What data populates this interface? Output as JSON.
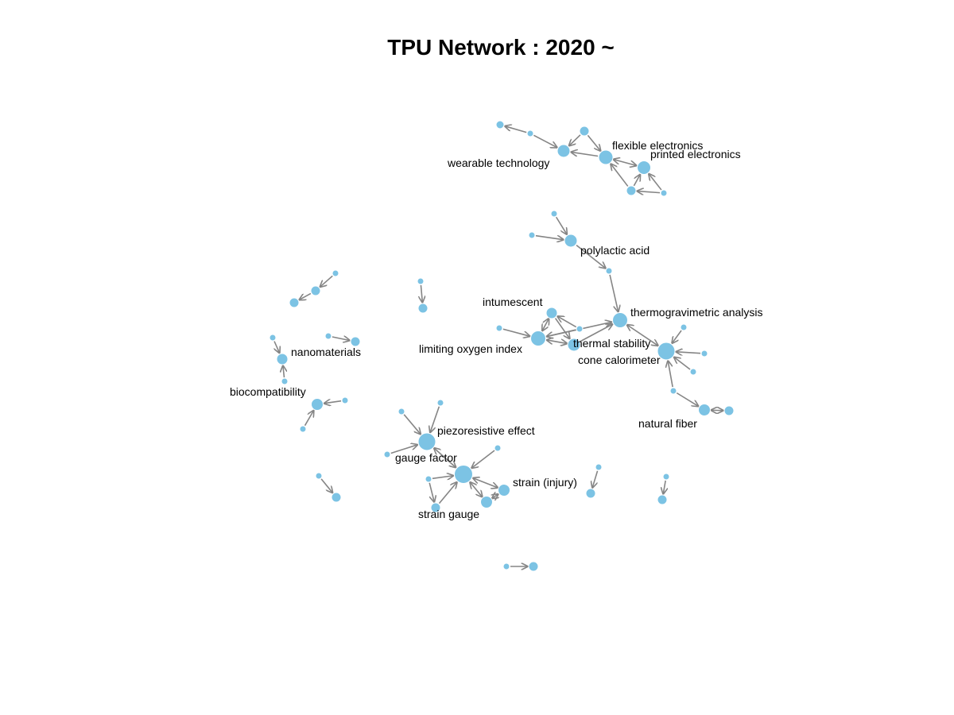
{
  "title": "TPU Network : 2020 ~",
  "colors": {
    "node": "#7cc3e4",
    "edge": "#858585"
  },
  "network": {
    "labels": [
      "wearable technology",
      "flexible electronics",
      "printed electronics",
      "polylactic acid",
      "intumescent",
      "thermogravimetric analysis",
      "limiting oxygen index",
      "thermal stability",
      "cone calorimeter",
      "nanomaterials",
      "biocompatibility",
      "natural fiber",
      "piezoresistive effect",
      "gauge factor",
      "strain (injury)",
      "strain gauge"
    ]
  }
}
